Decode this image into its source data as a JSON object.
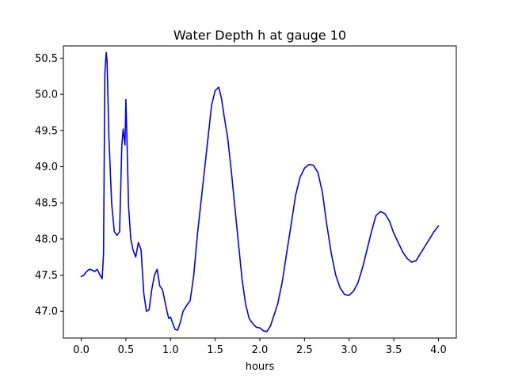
{
  "chart_data": {
    "type": "line",
    "title": "Water Depth h at gauge 10",
    "xlabel": "hours",
    "ylabel": "",
    "xlim": [
      -0.2,
      4.2
    ],
    "ylim": [
      46.63,
      50.67
    ],
    "xticks": [
      0.0,
      0.5,
      1.0,
      1.5,
      2.0,
      2.5,
      3.0,
      3.5,
      4.0
    ],
    "xtick_labels": [
      "0.0",
      "0.5",
      "1.0",
      "1.5",
      "2.0",
      "2.5",
      "3.0",
      "3.5",
      "4.0"
    ],
    "yticks": [
      47.0,
      47.5,
      48.0,
      48.5,
      49.0,
      49.5,
      50.0,
      50.5
    ],
    "ytick_labels": [
      "47.0",
      "47.5",
      "48.0",
      "48.5",
      "49.0",
      "49.5",
      "50.0",
      "50.5"
    ],
    "grid": false,
    "series": [
      {
        "color": "#0000ff",
        "x": [
          0.0,
          0.03,
          0.06,
          0.09,
          0.12,
          0.15,
          0.18,
          0.21,
          0.235,
          0.25,
          0.265,
          0.28,
          0.29,
          0.31,
          0.34,
          0.37,
          0.4,
          0.43,
          0.455,
          0.47,
          0.48,
          0.49,
          0.5,
          0.51,
          0.53,
          0.555,
          0.58,
          0.61,
          0.64,
          0.67,
          0.7,
          0.73,
          0.76,
          0.79,
          0.82,
          0.85,
          0.88,
          0.91,
          0.94,
          0.96,
          0.98,
          1.0,
          1.02,
          1.05,
          1.08,
          1.11,
          1.14,
          1.18,
          1.22,
          1.26,
          1.3,
          1.34,
          1.38,
          1.42,
          1.46,
          1.5,
          1.54,
          1.57,
          1.6,
          1.64,
          1.68,
          1.72,
          1.76,
          1.8,
          1.84,
          1.88,
          1.92,
          1.96,
          2.0,
          2.04,
          2.08,
          2.12,
          2.16,
          2.2,
          2.25,
          2.3,
          2.35,
          2.4,
          2.45,
          2.5,
          2.55,
          2.6,
          2.65,
          2.7,
          2.75,
          2.8,
          2.85,
          2.9,
          2.95,
          3.0,
          3.05,
          3.1,
          3.15,
          3.2,
          3.25,
          3.3,
          3.35,
          3.4,
          3.45,
          3.5,
          3.55,
          3.6,
          3.65,
          3.7,
          3.75,
          3.8,
          3.85,
          3.9,
          3.95,
          4.0
        ],
        "y": [
          47.48,
          47.5,
          47.55,
          47.58,
          47.57,
          47.55,
          47.58,
          47.5,
          47.45,
          47.8,
          50.3,
          50.58,
          50.45,
          49.4,
          48.5,
          48.1,
          48.05,
          48.1,
          49.3,
          49.52,
          49.4,
          49.3,
          49.93,
          49.5,
          48.45,
          48.0,
          47.85,
          47.75,
          47.95,
          47.85,
          47.25,
          47.0,
          47.02,
          47.3,
          47.5,
          47.58,
          47.35,
          47.3,
          47.12,
          47.0,
          46.9,
          46.92,
          46.85,
          46.75,
          46.74,
          46.85,
          47.0,
          47.08,
          47.15,
          47.5,
          48.05,
          48.5,
          48.95,
          49.4,
          49.85,
          50.05,
          50.1,
          49.95,
          49.7,
          49.4,
          48.95,
          48.45,
          47.95,
          47.45,
          47.1,
          46.9,
          46.83,
          46.78,
          46.77,
          46.73,
          46.72,
          46.8,
          46.95,
          47.1,
          47.4,
          47.8,
          48.2,
          48.6,
          48.85,
          48.98,
          49.03,
          49.02,
          48.92,
          48.65,
          48.2,
          47.8,
          47.5,
          47.32,
          47.23,
          47.22,
          47.28,
          47.4,
          47.6,
          47.85,
          48.1,
          48.32,
          48.38,
          48.35,
          48.25,
          48.08,
          47.95,
          47.82,
          47.73,
          47.68,
          47.7,
          47.8,
          47.9,
          48.0,
          48.1,
          48.18
        ]
      }
    ]
  }
}
